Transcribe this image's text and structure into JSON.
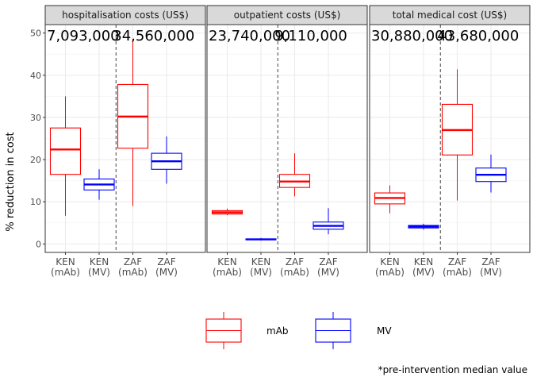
{
  "chart_data": {
    "type": "boxplot",
    "ylabel": "% reduction in cost",
    "ylim": [
      -2,
      52
    ],
    "yticks": [
      0,
      10,
      20,
      30,
      40,
      50
    ],
    "grid": true,
    "categories": [
      "KEN\n(mAb)",
      "KEN\n(MV)",
      "ZAF\n(mAb)",
      "ZAF\n(MV)"
    ],
    "colors": {
      "mAb": "#ff0000",
      "MV": "#0000ff"
    },
    "legend": {
      "position": "bottom",
      "entries": [
        {
          "name": "mAb",
          "color": "#ff0000"
        },
        {
          "name": "MV",
          "color": "#0000ff"
        }
      ]
    },
    "footnote": "*pre-intervention median value",
    "panels": [
      {
        "title": "hospitalisation costs (US$)",
        "annotations": [
          "7,093,000",
          "34,560,000"
        ],
        "boxes": [
          {
            "group": "mAb",
            "min": 6.7,
            "q1": 16.5,
            "median": 22.4,
            "q3": 27.5,
            "max": 35.0
          },
          {
            "group": "MV",
            "min": 10.5,
            "q1": 12.8,
            "median": 14.1,
            "q3": 15.4,
            "max": 17.7
          },
          {
            "group": "mAb",
            "min": 9.0,
            "q1": 22.7,
            "median": 30.2,
            "q3": 37.8,
            "max": 48.5
          },
          {
            "group": "MV",
            "min": 14.3,
            "q1": 17.7,
            "median": 19.6,
            "q3": 21.5,
            "max": 25.5
          }
        ]
      },
      {
        "title": "outpatient costs (US$)",
        "annotations": [
          "23,740,000",
          "9,110,000"
        ],
        "boxes": [
          {
            "group": "mAb",
            "min": 6.8,
            "q1": 7.1,
            "median": 7.5,
            "q3": 7.9,
            "max": 8.4
          },
          {
            "group": "MV",
            "min": 0.8,
            "q1": 1.0,
            "median": 1.1,
            "q3": 1.2,
            "max": 1.4
          },
          {
            "group": "mAb",
            "min": 11.3,
            "q1": 13.4,
            "median": 14.8,
            "q3": 16.5,
            "max": 21.5
          },
          {
            "group": "MV",
            "min": 2.3,
            "q1": 3.5,
            "median": 4.3,
            "q3": 5.2,
            "max": 8.5
          }
        ]
      },
      {
        "title": "total medical cost (US$)",
        "annotations": [
          "30,880,000",
          "43,680,000"
        ],
        "boxes": [
          {
            "group": "mAb",
            "min": 7.3,
            "q1": 9.5,
            "median": 10.9,
            "q3": 12.1,
            "max": 13.9
          },
          {
            "group": "MV",
            "min": 3.4,
            "q1": 3.8,
            "median": 4.1,
            "q3": 4.4,
            "max": 4.8
          },
          {
            "group": "mAb",
            "min": 10.3,
            "q1": 21.1,
            "median": 27.0,
            "q3": 33.1,
            "max": 41.4
          },
          {
            "group": "MV",
            "min": 12.2,
            "q1": 14.8,
            "median": 16.4,
            "q3": 18.0,
            "max": 21.2
          }
        ]
      }
    ]
  }
}
